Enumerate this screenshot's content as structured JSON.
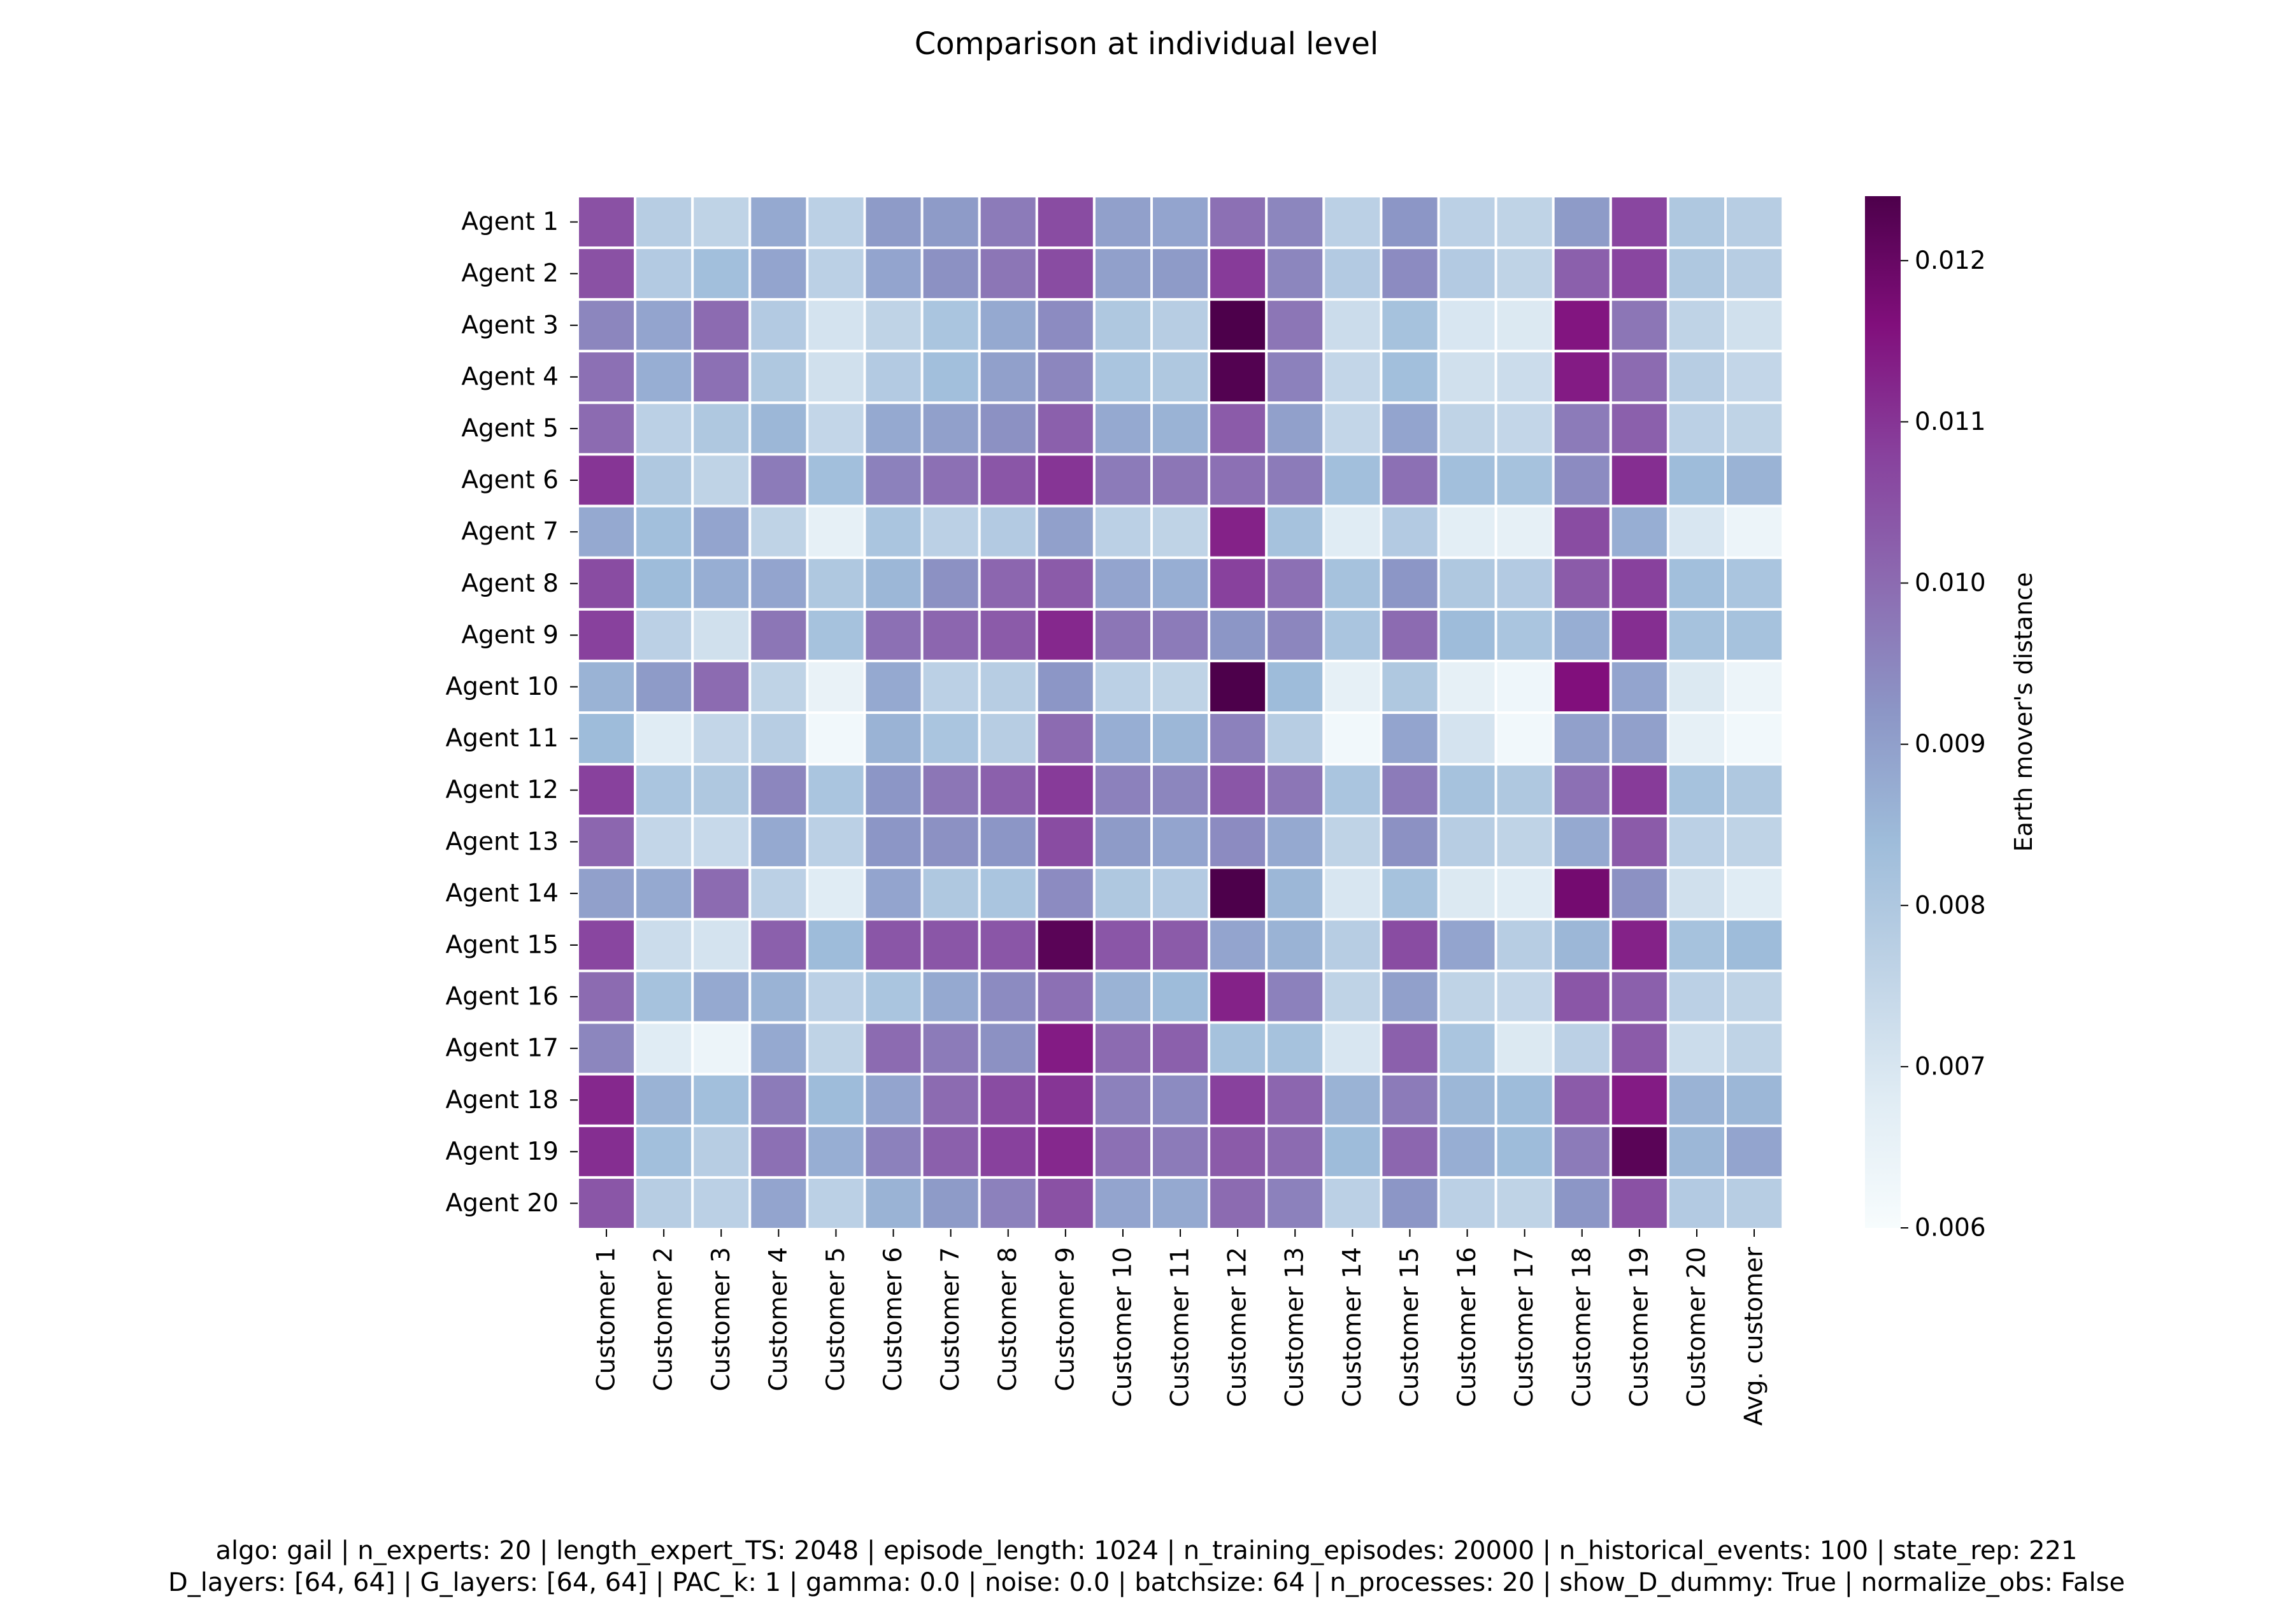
{
  "chart_data": {
    "type": "heatmap",
    "title": "Comparison at individual level",
    "rows": [
      "Agent 1",
      "Agent 2",
      "Agent 3",
      "Agent 4",
      "Agent 5",
      "Agent 6",
      "Agent 7",
      "Agent 8",
      "Agent 9",
      "Agent 10",
      "Agent 11",
      "Agent 12",
      "Agent 13",
      "Agent 14",
      "Agent 15",
      "Agent 16",
      "Agent 17",
      "Agent 18",
      "Agent 19",
      "Agent 20"
    ],
    "columns": [
      "Customer 1",
      "Customer 2",
      "Customer 3",
      "Customer 4",
      "Customer 5",
      "Customer 6",
      "Customer 7",
      "Customer 8",
      "Customer 9",
      "Customer 10",
      "Customer 11",
      "Customer 12",
      "Customer 13",
      "Customer 14",
      "Customer 15",
      "Customer 16",
      "Customer 17",
      "Customer 18",
      "Customer 19",
      "Customer 20",
      "Avg. customer"
    ],
    "values": [
      [
        0.0105,
        0.0078,
        0.0076,
        0.0088,
        0.0077,
        0.0091,
        0.0091,
        0.0097,
        0.0106,
        0.009,
        0.0089,
        0.0099,
        0.0095,
        0.0077,
        0.0092,
        0.0077,
        0.0076,
        0.0091,
        0.0107,
        0.008,
        0.0078
      ],
      [
        0.0105,
        0.0079,
        0.0083,
        0.0089,
        0.0077,
        0.0089,
        0.0093,
        0.0098,
        0.0106,
        0.009,
        0.0091,
        0.0109,
        0.0095,
        0.0079,
        0.0094,
        0.0079,
        0.0076,
        0.0102,
        0.0107,
        0.008,
        0.0078
      ],
      [
        0.0095,
        0.0089,
        0.01,
        0.0079,
        0.0071,
        0.0076,
        0.0081,
        0.0088,
        0.0094,
        0.008,
        0.0078,
        0.0124,
        0.0098,
        0.0073,
        0.0082,
        0.007,
        0.0069,
        0.0115,
        0.0098,
        0.0076,
        0.0072
      ],
      [
        0.0099,
        0.0087,
        0.0099,
        0.008,
        0.0072,
        0.0079,
        0.0083,
        0.009,
        0.0095,
        0.0081,
        0.008,
        0.0123,
        0.0096,
        0.0075,
        0.0083,
        0.0072,
        0.0073,
        0.0114,
        0.01,
        0.0078,
        0.0075
      ],
      [
        0.01,
        0.0077,
        0.008,
        0.0085,
        0.0075,
        0.0088,
        0.009,
        0.0093,
        0.0102,
        0.0088,
        0.0086,
        0.0103,
        0.009,
        0.0075,
        0.0089,
        0.0076,
        0.0075,
        0.0097,
        0.0102,
        0.0077,
        0.0076
      ],
      [
        0.011,
        0.008,
        0.0076,
        0.0097,
        0.0083,
        0.0096,
        0.0099,
        0.0104,
        0.011,
        0.0097,
        0.0098,
        0.0099,
        0.0097,
        0.0083,
        0.0099,
        0.0083,
        0.0082,
        0.0094,
        0.0111,
        0.0084,
        0.0086
      ],
      [
        0.0088,
        0.0083,
        0.0089,
        0.0076,
        0.0066,
        0.0081,
        0.0077,
        0.0079,
        0.009,
        0.0077,
        0.0076,
        0.0113,
        0.0082,
        0.0068,
        0.0079,
        0.0067,
        0.0066,
        0.0106,
        0.0087,
        0.007,
        0.0064
      ],
      [
        0.0106,
        0.0084,
        0.0087,
        0.0089,
        0.008,
        0.0085,
        0.0093,
        0.0101,
        0.0103,
        0.0089,
        0.0087,
        0.0108,
        0.0099,
        0.0082,
        0.0092,
        0.008,
        0.0079,
        0.0103,
        0.0108,
        0.0083,
        0.0081
      ],
      [
        0.0108,
        0.0077,
        0.0072,
        0.0098,
        0.0082,
        0.0099,
        0.0101,
        0.0103,
        0.0112,
        0.0098,
        0.0097,
        0.0092,
        0.0095,
        0.0081,
        0.01,
        0.0084,
        0.0081,
        0.0087,
        0.0111,
        0.0082,
        0.0082
      ],
      [
        0.0086,
        0.0091,
        0.01,
        0.0076,
        0.0065,
        0.0088,
        0.0077,
        0.0078,
        0.0092,
        0.0077,
        0.0076,
        0.0125,
        0.0084,
        0.0066,
        0.008,
        0.0066,
        0.0063,
        0.0116,
        0.0089,
        0.0069,
        0.0064
      ],
      [
        0.0084,
        0.0068,
        0.0075,
        0.0078,
        0.0062,
        0.0086,
        0.0081,
        0.0078,
        0.01,
        0.0087,
        0.0085,
        0.0096,
        0.0078,
        0.0062,
        0.0089,
        0.0071,
        0.0062,
        0.009,
        0.009,
        0.0066,
        0.0062
      ],
      [
        0.0108,
        0.0081,
        0.008,
        0.0095,
        0.0081,
        0.0092,
        0.0098,
        0.0102,
        0.0109,
        0.0096,
        0.0095,
        0.0104,
        0.0098,
        0.0081,
        0.0097,
        0.0082,
        0.008,
        0.0099,
        0.0109,
        0.0082,
        0.008
      ],
      [
        0.0101,
        0.0075,
        0.0074,
        0.0088,
        0.0077,
        0.0092,
        0.0093,
        0.0092,
        0.0106,
        0.0091,
        0.0089,
        0.0094,
        0.0088,
        0.0076,
        0.0093,
        0.0078,
        0.0076,
        0.0088,
        0.0103,
        0.0077,
        0.0076
      ],
      [
        0.009,
        0.0088,
        0.01,
        0.0077,
        0.0068,
        0.0089,
        0.008,
        0.0081,
        0.0094,
        0.008,
        0.0079,
        0.0126,
        0.0085,
        0.007,
        0.0082,
        0.0069,
        0.0068,
        0.0118,
        0.0093,
        0.0072,
        0.0068
      ],
      [
        0.0107,
        0.0073,
        0.0071,
        0.0102,
        0.0084,
        0.0104,
        0.0104,
        0.0104,
        0.0122,
        0.0104,
        0.0103,
        0.0089,
        0.0086,
        0.0078,
        0.0106,
        0.0089,
        0.0078,
        0.0085,
        0.0113,
        0.0082,
        0.0084
      ],
      [
        0.01,
        0.0082,
        0.0088,
        0.0086,
        0.0077,
        0.0081,
        0.0088,
        0.0094,
        0.0099,
        0.0086,
        0.0084,
        0.0113,
        0.0096,
        0.0076,
        0.009,
        0.0076,
        0.0075,
        0.0104,
        0.0102,
        0.0077,
        0.0076
      ],
      [
        0.0095,
        0.0068,
        0.0064,
        0.0088,
        0.0076,
        0.01,
        0.0097,
        0.0093,
        0.0114,
        0.01,
        0.0102,
        0.0082,
        0.0082,
        0.007,
        0.0102,
        0.0081,
        0.0069,
        0.0077,
        0.0103,
        0.0073,
        0.0076
      ],
      [
        0.0112,
        0.0086,
        0.0083,
        0.0097,
        0.0084,
        0.0089,
        0.01,
        0.0106,
        0.011,
        0.0096,
        0.0094,
        0.0108,
        0.0101,
        0.0086,
        0.0097,
        0.0085,
        0.0084,
        0.0103,
        0.0114,
        0.0086,
        0.0085
      ],
      [
        0.0111,
        0.0083,
        0.0078,
        0.0099,
        0.0087,
        0.0096,
        0.0102,
        0.0108,
        0.0112,
        0.0099,
        0.0097,
        0.0103,
        0.01,
        0.0084,
        0.0101,
        0.0087,
        0.0084,
        0.0097,
        0.0122,
        0.0085,
        0.0089
      ],
      [
        0.0104,
        0.0078,
        0.0077,
        0.0089,
        0.0077,
        0.0086,
        0.0091,
        0.0096,
        0.0105,
        0.0089,
        0.0088,
        0.01,
        0.0096,
        0.0077,
        0.0092,
        0.0077,
        0.0076,
        0.0092,
        0.0105,
        0.0079,
        0.0078
      ]
    ],
    "colorbar": {
      "label": "Earth mover's distance",
      "ticks": [
        "0.006",
        "0.007",
        "0.008",
        "0.009",
        "0.010",
        "0.011",
        "0.012"
      ],
      "tick_values": [
        0.006,
        0.007,
        0.008,
        0.009,
        0.01,
        0.011,
        0.012
      ],
      "vmin": 0.006,
      "vmax": 0.0124,
      "colormap": "BuPu",
      "stops": [
        "#f7fcfd",
        "#e0ecf4",
        "#bfd3e6",
        "#9ebcda",
        "#8c96c6",
        "#8c6bb1",
        "#88419d",
        "#810f7c",
        "#4d004b"
      ]
    },
    "grid_line_color": "#ffffff"
  },
  "footer": {
    "line1": "algo: gail | n_experts: 20 | length_expert_TS: 2048 | episode_length: 1024 | n_training_episodes: 20000 | n_historical_events: 100 | state_rep: 221",
    "line2": "D_layers: [64, 64] | G_layers: [64, 64] | PAC_k: 1 | gamma: 0.0 | noise: 0.0 | batchsize: 64 | n_processes: 20 | show_D_dummy: True | normalize_obs: False"
  }
}
